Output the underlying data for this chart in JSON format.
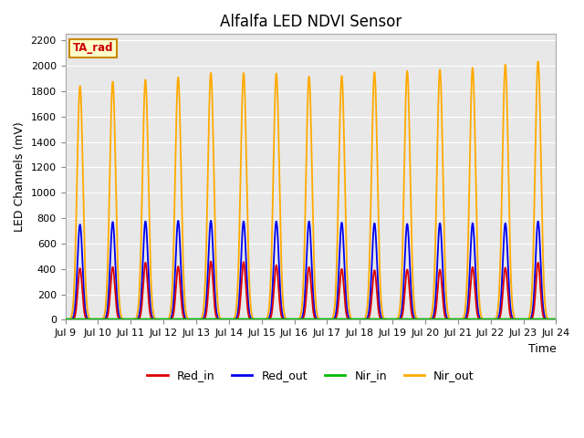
{
  "title": "Alfalfa LED NDVI Sensor",
  "ylabel": "LED Channels (mV)",
  "xlabel": "Time",
  "ylim": [
    0,
    2250
  ],
  "xlim_start": 9,
  "xlim_end": 24,
  "xtick_labels": [
    "Jul 9",
    "Jul 10",
    "Jul 11",
    "Jul 12",
    "Jul 13",
    "Jul 14",
    "Jul 15",
    "Jul 16",
    "Jul 17",
    "Jul 18",
    "Jul 19",
    "Jul 20",
    "Jul 21",
    "Jul 22",
    "Jul 23",
    "Jul 24"
  ],
  "colors": {
    "Red_in": "#dd0000",
    "Red_out": "#0000ee",
    "Nir_in": "#00bb00",
    "Nir_out": "#ffaa00"
  },
  "background_color": "#e8e8e8",
  "figure_background": "#ffffff",
  "annotation_box": {
    "text": "TA_rad",
    "bg_color": "#ffffcc",
    "border_color": "#cc8800",
    "text_color": "#cc0000"
  },
  "nir_out_peaks": [
    1840,
    1875,
    1890,
    1910,
    1945,
    1945,
    1940,
    1915,
    1920,
    1950,
    1960,
    1970,
    1985,
    2010,
    2035
  ],
  "red_out_peaks": [
    750,
    770,
    775,
    780,
    780,
    775,
    775,
    775,
    765,
    760,
    755,
    760,
    760,
    760,
    775
  ],
  "red_in_peaks": [
    405,
    415,
    450,
    420,
    460,
    455,
    430,
    415,
    400,
    390,
    395,
    395,
    415,
    410,
    450
  ],
  "nir_in_value": 5,
  "n_peaks": 15,
  "peak_sigma": 0.09,
  "peak_positions_start": 9.45,
  "peak_positions_end": 23.45
}
